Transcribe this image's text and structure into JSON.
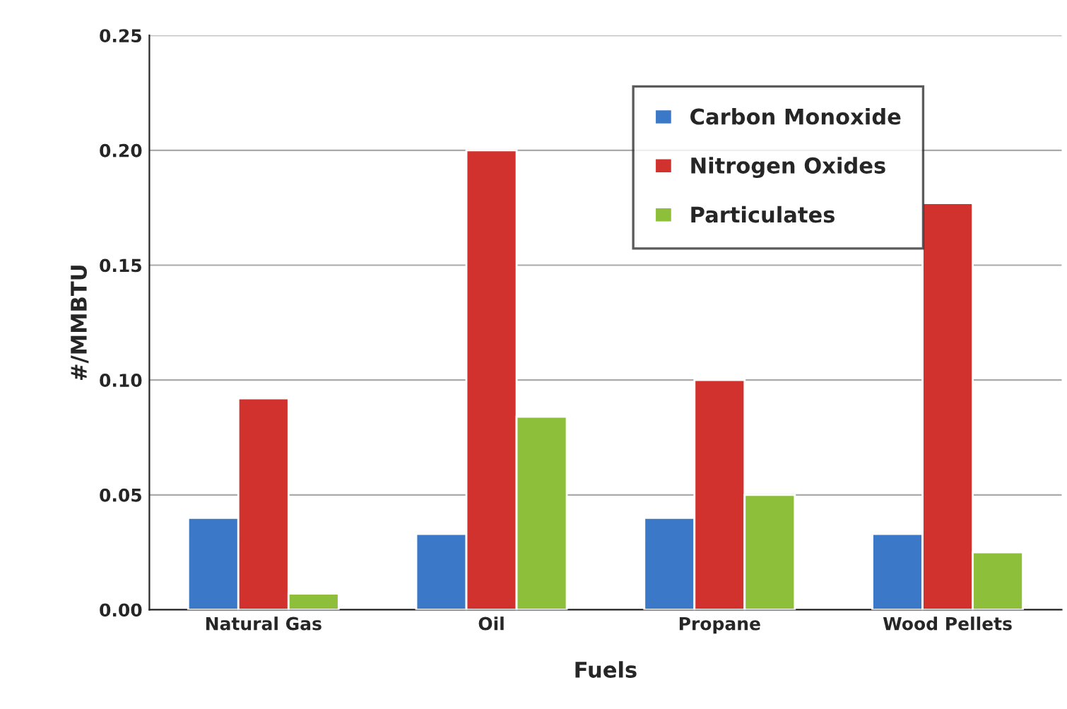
{
  "chart_data": {
    "type": "bar",
    "xlabel": "Fuels",
    "ylabel": "#/MMBTU",
    "categories": [
      "Natural Gas",
      "Oil",
      "Propane",
      "Wood Pellets"
    ],
    "series": [
      {
        "name": "Carbon Monoxide",
        "color": "#3b78c8",
        "values": [
          0.04,
          0.033,
          0.04,
          0.033
        ]
      },
      {
        "name": "Nitrogen Oxides",
        "color": "#d2322d",
        "values": [
          0.092,
          0.2,
          0.1,
          0.177
        ]
      },
      {
        "name": "Particulates",
        "color": "#8dbf3a",
        "values": [
          0.007,
          0.084,
          0.05,
          0.025
        ]
      }
    ],
    "ylim": [
      0,
      0.25
    ],
    "yticks": [
      {
        "value": 0,
        "label": "0.00"
      },
      {
        "value": 0.05,
        "label": "0.05"
      },
      {
        "value": 0.1,
        "label": "0.10"
      },
      {
        "value": 0.15,
        "label": "0.15"
      },
      {
        "value": 0.2,
        "label": "0.20"
      },
      {
        "value": 0.25,
        "label": "0.25"
      }
    ],
    "grid": "y",
    "legend": "top right"
  }
}
